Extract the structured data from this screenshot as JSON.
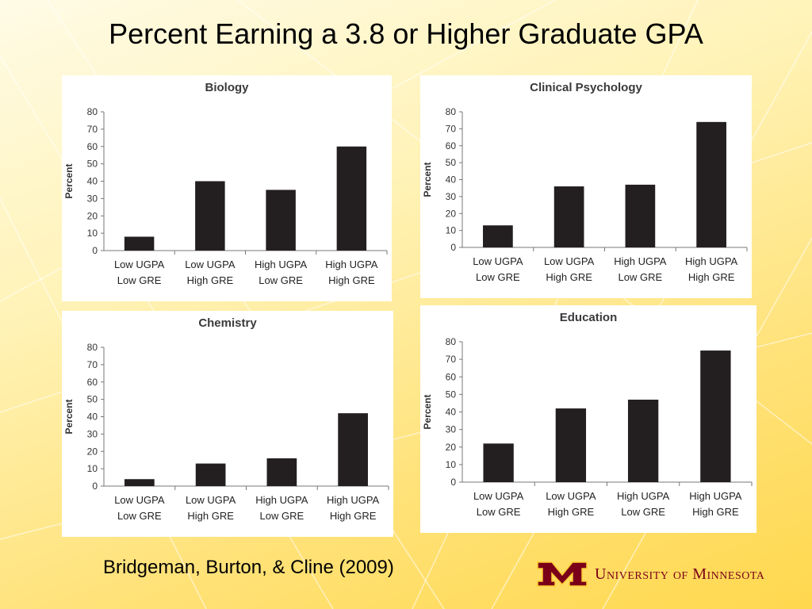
{
  "slide": {
    "title": "Percent Earning a 3.8 or Higher Graduate GPA",
    "citation": "Bridgeman, Burton, & Cline (2009)",
    "logo_text": "University of Minnesota",
    "logo_mark": "M",
    "colors": {
      "bar": "#231f20",
      "brand": "#7a0019",
      "brand_gold": "#ffcc33"
    }
  },
  "chart_data": [
    {
      "type": "bar",
      "title": "Biology",
      "ylabel": "Percent",
      "xlabel": "",
      "ylim": [
        0,
        80
      ],
      "yticks": [
        0,
        10,
        20,
        30,
        40,
        50,
        60,
        70,
        80
      ],
      "categories": [
        [
          "Low UGPA",
          "Low GRE"
        ],
        [
          "Low UGPA",
          "High GRE"
        ],
        [
          "High UGPA",
          "Low GRE"
        ],
        [
          "High UGPA",
          "High GRE"
        ]
      ],
      "values": [
        8,
        40,
        35,
        60
      ]
    },
    {
      "type": "bar",
      "title": "Clinical Psychology",
      "ylabel": "Percent",
      "xlabel": "",
      "ylim": [
        0,
        80
      ],
      "yticks": [
        0,
        10,
        20,
        30,
        40,
        50,
        60,
        70,
        80
      ],
      "categories": [
        [
          "Low UGPA",
          "Low GRE"
        ],
        [
          "Low UGPA",
          "High GRE"
        ],
        [
          "High UGPA",
          "Low GRE"
        ],
        [
          "High UGPA",
          "High GRE"
        ]
      ],
      "values": [
        13,
        36,
        37,
        74
      ]
    },
    {
      "type": "bar",
      "title": "Chemistry",
      "ylabel": "Percent",
      "xlabel": "",
      "ylim": [
        0,
        80
      ],
      "yticks": [
        0,
        10,
        20,
        30,
        40,
        50,
        60,
        70,
        80
      ],
      "categories": [
        [
          "Low UGPA",
          "Low GRE"
        ],
        [
          "Low UGPA",
          "High GRE"
        ],
        [
          "High UGPA",
          "Low GRE"
        ],
        [
          "High UGPA",
          "High GRE"
        ]
      ],
      "values": [
        4,
        13,
        16,
        42
      ]
    },
    {
      "type": "bar",
      "title": "Education",
      "ylabel": "Percent",
      "xlabel": "",
      "ylim": [
        0,
        80
      ],
      "yticks": [
        0,
        10,
        20,
        30,
        40,
        50,
        60,
        70,
        80
      ],
      "categories": [
        [
          "Low UGPA",
          "Low GRE"
        ],
        [
          "Low UGPA",
          "High GRE"
        ],
        [
          "High UGPA",
          "Low GRE"
        ],
        [
          "High UGPA",
          "High GRE"
        ]
      ],
      "values": [
        22,
        42,
        47,
        75
      ]
    }
  ]
}
